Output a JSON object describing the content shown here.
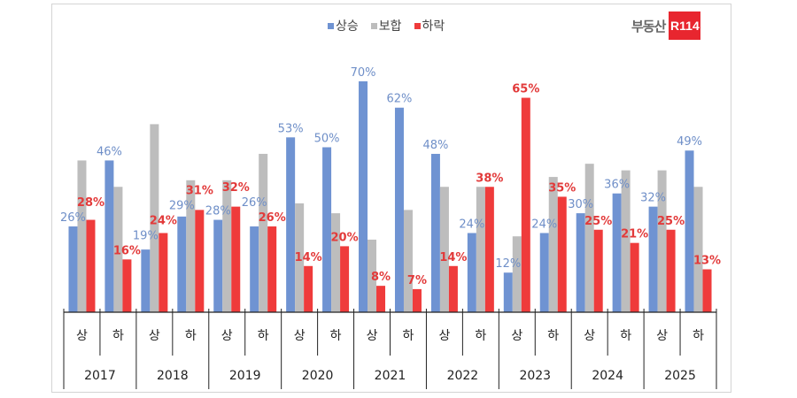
{
  "chart_data": {
    "type": "bar",
    "categories": [
      {
        "year": "2017",
        "half": "상"
      },
      {
        "year": "2017",
        "half": "하"
      },
      {
        "year": "2018",
        "half": "상"
      },
      {
        "year": "2018",
        "half": "하"
      },
      {
        "year": "2019",
        "half": "상"
      },
      {
        "year": "2019",
        "half": "하"
      },
      {
        "year": "2020",
        "half": "상"
      },
      {
        "year": "2020",
        "half": "하"
      },
      {
        "year": "2021",
        "half": "상"
      },
      {
        "year": "2021",
        "half": "하"
      },
      {
        "year": "2022",
        "half": "상"
      },
      {
        "year": "2022",
        "half": "하"
      },
      {
        "year": "2023",
        "half": "상"
      },
      {
        "year": "2023",
        "half": "하"
      },
      {
        "year": "2024",
        "half": "상"
      },
      {
        "year": "2024",
        "half": "하"
      },
      {
        "year": "2025",
        "half": "상"
      },
      {
        "year": "2025",
        "half": "하"
      }
    ],
    "years": [
      "2017",
      "2018",
      "2019",
      "2020",
      "2021",
      "2022",
      "2023",
      "2024",
      "2025"
    ],
    "series": [
      {
        "name": "상승",
        "color": "#6f93d2",
        "labeled": true,
        "values": [
          26,
          46,
          19,
          29,
          28,
          26,
          53,
          50,
          70,
          62,
          48,
          24,
          12,
          24,
          30,
          36,
          32,
          49
        ]
      },
      {
        "name": "보합",
        "color": "#bdbdbd",
        "labeled": false,
        "values": [
          46,
          38,
          57,
          40,
          40,
          48,
          33,
          30,
          22,
          31,
          38,
          38,
          23,
          41,
          45,
          43,
          43,
          38
        ]
      },
      {
        "name": "하락",
        "color": "#ef3b3b",
        "labeled": true,
        "values": [
          28,
          16,
          24,
          31,
          32,
          26,
          14,
          20,
          8,
          7,
          14,
          38,
          65,
          35,
          25,
          21,
          25,
          13
        ]
      }
    ],
    "unit": "%",
    "ylim": [
      0,
      75
    ],
    "grid": false,
    "legend_position": "top-center"
  },
  "legend": [
    "상승",
    "보합",
    "하락"
  ],
  "logo": {
    "text": "부동산",
    "badge": "R114"
  }
}
